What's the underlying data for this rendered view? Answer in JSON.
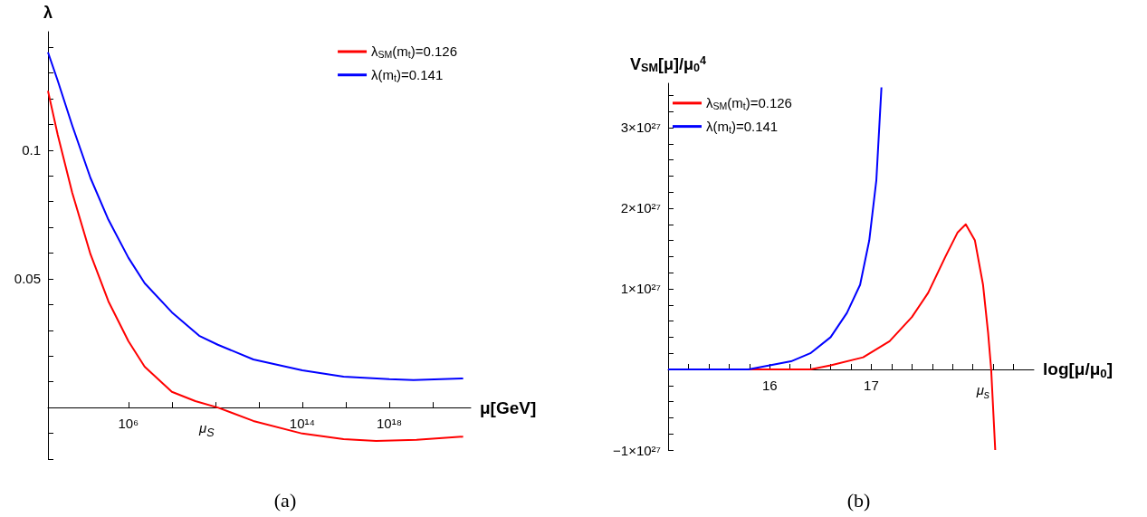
{
  "chart_data": [
    {
      "type": "line",
      "xlabel": "μ[GeV]",
      "ylabel": "λ",
      "log": "x",
      "legend": "top right",
      "grid": false,
      "xlim": [
        200.0,
        5.6e+21
      ],
      "ylim": [
        -0.02,
        0.146
      ],
      "xticks": [
        {
          "value": 1000000.0,
          "label": "10⁶"
        },
        {
          "value": 100000000.0,
          "label": null
        },
        {
          "value": 10000000000.0,
          "label": null
        },
        {
          "value": 1000000000000.0,
          "label": null
        },
        {
          "value": 100000000000000.0,
          "label": "10¹⁴"
        },
        {
          "value": 1e+16,
          "label": null
        },
        {
          "value": 1e+18,
          "label": "10¹⁸"
        },
        {
          "value": 1e+20,
          "label": null
        }
      ],
      "yticks": [
        {
          "value": -0.02,
          "label": null
        },
        {
          "value": -0.01,
          "label": null
        },
        {
          "value": 0.01,
          "label": null
        },
        {
          "value": 0.02,
          "label": null
        },
        {
          "value": 0.03,
          "label": null
        },
        {
          "value": 0.04,
          "label": null
        },
        0.05,
        {
          "value": 0.06,
          "label": null
        },
        {
          "value": 0.07,
          "label": null
        },
        {
          "value": 0.08,
          "label": null
        },
        {
          "value": 0.09,
          "label": null
        },
        0.1,
        {
          "value": 0.11,
          "label": null
        },
        {
          "value": 0.12,
          "label": null
        },
        {
          "value": 0.13,
          "label": null
        },
        {
          "value": 0.14,
          "label": null
        }
      ],
      "series": [
        {
          "name": "λ$_{SM}$(m$_{t}$)=0.126",
          "color": "#ff0000",
          "x": [
            200.0,
            560.0,
            2600.0,
            18000.0,
            120000.0,
            1000000.0,
            5600000.0,
            100000000.0,
            1200000000.0,
            13000000000.0,
            560000000000.0,
            100000000000000.0,
            7900000000000000.0,
            2.5e+17,
            1.8e+19,
            2.5e+21
          ],
          "values": [
            0.123,
            0.106,
            0.0835,
            0.0596,
            0.0413,
            0.0258,
            0.0159,
            0.0061,
            0.0025,
            0,
            -0.0052,
            -0.0101,
            -0.0123,
            -0.013,
            -0.0125,
            -0.0113
          ]
        },
        {
          "name": "λ(m$_{t}$)=0.141",
          "color": "#0000ff",
          "x": [
            200.0,
            560.0,
            2600.0,
            18000.0,
            120000.0,
            1000000.0,
            5600000.0,
            100000000.0,
            1800000000.0,
            13000000000.0,
            560000000000.0,
            100000000000000.0,
            7900000000000000.0,
            1e+18,
            1.3e+19,
            2.5e+21
          ],
          "values": [
            0.138,
            0.127,
            0.1096,
            0.0892,
            0.073,
            0.0582,
            0.0483,
            0.037,
            0.0279,
            0.0244,
            0.0187,
            0.0145,
            0.012,
            0.011,
            0.0107,
            0.0113
          ]
        }
      ],
      "annotations": [
        {
          "text": "μ$_{S}$",
          "x": 13000000000.0,
          "y": 0
        },
        "(a)"
      ]
    },
    {
      "type": "line",
      "xlabel": "log[μ/μ$_{0}$]",
      "ylabel": "V$_{SM}$[μ]/μ$_{0}$$^{4}$",
      "legend": "top left",
      "grid": false,
      "xlim": [
        15.0,
        18.6
      ],
      "ylim": [
        -1e+27,
        3.55e+27
      ],
      "xticks": [
        {
          "value": 15.2,
          "label": null
        },
        {
          "value": 15.4,
          "label": null
        },
        {
          "value": 15.6,
          "label": null
        },
        {
          "value": 15.8,
          "label": null
        },
        16,
        {
          "value": 16.2,
          "label": null
        },
        {
          "value": 16.4,
          "label": null
        },
        {
          "value": 16.6,
          "label": null
        },
        {
          "value": 16.8,
          "label": null
        },
        17,
        {
          "value": 17.2,
          "label": null
        },
        {
          "value": 17.4,
          "label": null
        },
        {
          "value": 17.6,
          "label": null
        },
        {
          "value": 17.8,
          "label": null
        },
        {
          "value": 18,
          "label": null
        },
        {
          "value": 18.2,
          "label": null
        },
        {
          "value": 18.4,
          "label": null
        }
      ],
      "yticks": [
        {
          "value": -1e+27,
          "label": "−1×10²⁷"
        },
        {
          "value": -8e+26,
          "label": null
        },
        {
          "value": -6e+26,
          "label": null
        },
        {
          "value": -4e+26,
          "label": null
        },
        {
          "value": -2e+26,
          "label": null
        },
        {
          "value": 2e+26,
          "label": null
        },
        {
          "value": 4e+26,
          "label": null
        },
        {
          "value": 6e+26,
          "label": null
        },
        {
          "value": 8e+26,
          "label": null
        },
        {
          "value": 1e+27,
          "label": "1×10²⁷"
        },
        {
          "value": 1.2e+27,
          "label": null
        },
        {
          "value": 1.4e+27,
          "label": null
        },
        {
          "value": 1.6e+27,
          "label": null
        },
        {
          "value": 1.8e+27,
          "label": null
        },
        {
          "value": 2e+27,
          "label": "2×10²⁷"
        },
        {
          "value": 2.2e+27,
          "label": null
        },
        {
          "value": 2.4e+27,
          "label": null
        },
        {
          "value": 2.6e+27,
          "label": null
        },
        {
          "value": 2.8e+27,
          "label": null
        },
        {
          "value": 3e+27,
          "label": "3×10²⁷"
        },
        {
          "value": 3.2e+27,
          "label": null
        },
        {
          "value": 3.4e+27,
          "label": null
        }
      ],
      "series": [
        {
          "name": "λ$_{SM}$(m$_{t}$)=0.126",
          "color": "#ff0000",
          "x": [
            15.0,
            16.0,
            16.4,
            16.6,
            16.92,
            17.18,
            17.4,
            17.56,
            17.73,
            17.85,
            17.93,
            18.02,
            18.1,
            18.15,
            18.18,
            18.22
          ],
          "values": [
            0,
            0,
            0,
            5e+25,
            1.5e+26,
            3.5e+26,
            6.5e+26,
            9.5e+26,
            1.4e+27,
            1.7e+27,
            1.8e+27,
            1.6e+27,
            1.05e+27,
            4.5e+26,
            0,
            -1e+27
          ]
        },
        {
          "name": "λ(m$_{t}$)=0.141",
          "color": "#0000ff",
          "x": [
            15.0,
            15.79,
            16.0,
            16.21,
            16.4,
            16.6,
            16.76,
            16.89,
            16.98,
            17.05,
            17.1
          ],
          "values": [
            0,
            0,
            5e+25,
            1e+26,
            2e+26,
            4e+26,
            7e+26,
            1.05e+27,
            1.6e+27,
            2.35e+27,
            3.5e+27
          ]
        }
      ],
      "annotations": [
        {
          "text": "μ$_{s}$",
          "x": 18.2,
          "y": 0
        },
        "(b)"
      ]
    }
  ]
}
